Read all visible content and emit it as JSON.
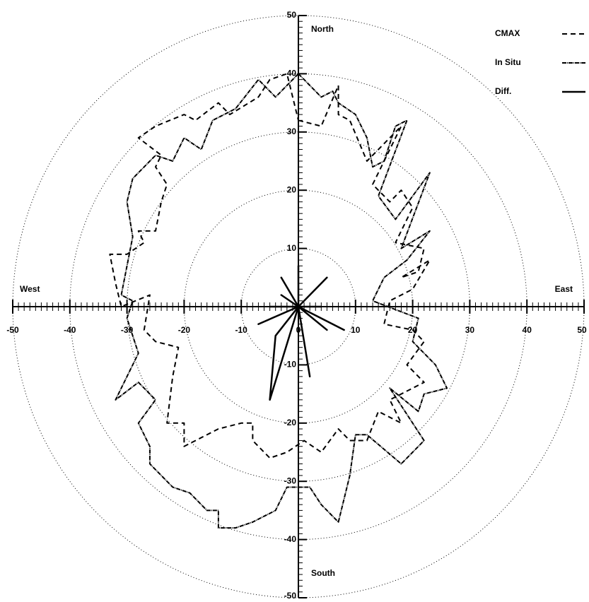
{
  "chart_data": {
    "type": "polar-xy",
    "xlim": [
      -50,
      50
    ],
    "ylim": [
      -50,
      50
    ],
    "xticks": [
      -50,
      -40,
      -30,
      -20,
      -10,
      0,
      10,
      20,
      30,
      40,
      50
    ],
    "yticks": [
      -50,
      -40,
      -30,
      -20,
      -10,
      10,
      20,
      30,
      40,
      50
    ],
    "rings": [
      10,
      20,
      30,
      40,
      50
    ],
    "directions": {
      "north": "North",
      "south": "South",
      "east": "East",
      "west": "West"
    },
    "legend": "top-right",
    "series": [
      {
        "name": "CMAX",
        "color": "#000000",
        "style": "dashed",
        "x": [
          0,
          4,
          7,
          7,
          9,
          12,
          18,
          13,
          16,
          18,
          20,
          17,
          22,
          21,
          18,
          23,
          20,
          16,
          15,
          20,
          22,
          19,
          22,
          16,
          18,
          14,
          12,
          9,
          7,
          4,
          1,
          -2,
          -5,
          -8,
          -8,
          -10,
          -14,
          -20,
          -20,
          -23,
          -22,
          -21,
          -25,
          -27,
          -26,
          -31,
          -32,
          -33,
          -30,
          -27,
          -28,
          -25,
          -24,
          -23,
          -25,
          -24,
          -28,
          -25,
          -20,
          -18,
          -14,
          -12,
          -7,
          -5,
          -2,
          -1,
          0
        ],
        "y": [
          32,
          31,
          38,
          33,
          32,
          25,
          31,
          21,
          18,
          20,
          17,
          11,
          10,
          6,
          5,
          8,
          3,
          1,
          -3,
          -4,
          -6,
          -10,
          -13,
          -16,
          -20,
          -18,
          -23,
          -23,
          -21,
          -25,
          -23,
          -25,
          -26,
          -23,
          -20,
          -20,
          -21,
          -24,
          -20,
          -20,
          -12,
          -7,
          -6,
          -4,
          2,
          0,
          4,
          9,
          9,
          11,
          13,
          13,
          18,
          21,
          24,
          26,
          29,
          31,
          33,
          32,
          35,
          33,
          36,
          39,
          40,
          36,
          32
        ]
      },
      {
        "name": "In Situ",
        "color": "#000000",
        "style": "dashdot",
        "x": [
          0,
          2,
          4,
          6,
          7,
          10,
          12,
          13,
          15,
          17,
          19,
          14,
          17,
          20,
          23,
          18,
          23,
          19,
          15,
          13,
          21,
          20,
          24,
          26,
          22,
          21,
          16,
          22,
          18,
          12,
          10,
          9,
          7,
          4,
          2,
          0,
          -2,
          -4,
          -8,
          -11,
          -14,
          -14,
          -16,
          -19,
          -22,
          -26,
          -26,
          -28,
          -25,
          -28,
          -32,
          -30,
          -28,
          -30,
          -29,
          -31,
          -30,
          -29,
          -30,
          -29,
          -25,
          -22,
          -20,
          -17,
          -15,
          -11,
          -7,
          -4,
          -2,
          0
        ],
        "y": [
          40,
          38,
          36,
          37,
          35,
          33,
          29,
          24,
          25,
          31,
          32,
          19,
          15,
          19,
          23,
          10,
          13,
          8,
          5,
          1,
          -2,
          -6,
          -10,
          -14,
          -15,
          -18,
          -14,
          -23,
          -27,
          -22,
          -22,
          -29,
          -37,
          -34,
          -31,
          -31,
          -31,
          -35,
          -37,
          -38,
          -38,
          -35,
          -35,
          -32,
          -31,
          -27,
          -24,
          -20,
          -16,
          -13,
          -16,
          -12,
          -8,
          -2,
          1,
          2,
          7,
          12,
          18,
          22,
          26,
          25,
          29,
          27,
          32,
          34,
          39,
          36,
          38,
          40
        ]
      },
      {
        "name": "Diff.",
        "color": "#000000",
        "style": "solid",
        "x": [
          0,
          0,
          0,
          5,
          0,
          2,
          0,
          4,
          0,
          8,
          0,
          5,
          0,
          2,
          0,
          -5,
          -4,
          0,
          -7,
          0,
          -5,
          0,
          -3,
          0,
          -3,
          0
        ],
        "y": [
          0,
          7,
          0,
          5,
          0,
          2,
          0,
          0,
          0,
          -4,
          0,
          -4,
          0,
          -12,
          0,
          -16,
          -5,
          0,
          -3,
          0,
          0,
          0,
          2,
          0,
          5,
          0
        ]
      }
    ]
  }
}
